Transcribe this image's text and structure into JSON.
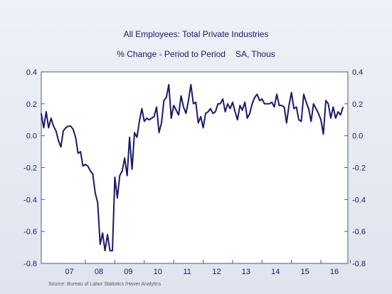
{
  "chart_data": {
    "type": "line",
    "title": "All Employees: Total Private Industries",
    "subtitle_left": "% Change - Period to Period",
    "subtitle_right": "SA, Thous",
    "source": "Source:  Bureau of Labor Statistics /Haver Analytics",
    "ylim": [
      -0.8,
      0.4
    ],
    "yticks": [
      "0.4",
      "0.2",
      "0.0",
      "-0.2",
      "-0.4",
      "-0.6",
      "-0.8"
    ],
    "xticks": [
      "07",
      "08",
      "09",
      "10",
      "11",
      "12",
      "13",
      "14",
      "15",
      "16"
    ],
    "x_start": "2006-07",
    "frequency": "monthly",
    "grid": false,
    "series": [
      {
        "color": "#1a1a66",
        "values": [
          0.14,
          0.05,
          0.15,
          0.05,
          0.11,
          0.06,
          0.03,
          -0.03,
          -0.07,
          0.03,
          0.05,
          0.06,
          0.06,
          0.04,
          -0.01,
          -0.11,
          -0.1,
          -0.19,
          -0.18,
          -0.19,
          -0.22,
          -0.24,
          -0.36,
          -0.42,
          -0.68,
          -0.61,
          -0.72,
          -0.62,
          -0.72,
          -0.72,
          -0.26,
          -0.39,
          -0.25,
          -0.22,
          -0.14,
          -0.25,
          -0.01,
          -0.21,
          0.02,
          -0.01,
          0.09,
          0.17,
          0.09,
          0.11,
          0.1,
          0.11,
          0.12,
          0.18,
          0.02,
          0.08,
          0.22,
          0.24,
          0.32,
          0.11,
          0.19,
          0.16,
          0.13,
          0.25,
          0.18,
          0.14,
          0.22,
          0.32,
          0.2,
          0.21,
          0.08,
          0.12,
          0.05,
          0.14,
          0.15,
          0.17,
          0.14,
          0.15,
          0.2,
          0.2,
          0.23,
          0.15,
          0.2,
          0.17,
          0.21,
          0.15,
          0.1,
          0.19,
          0.16,
          0.21,
          0.11,
          0.14,
          0.2,
          0.24,
          0.26,
          0.22,
          0.23,
          0.2,
          0.2,
          0.2,
          0.21,
          0.18,
          0.26,
          0.19,
          0.19,
          0.18,
          0.08,
          0.19,
          0.27,
          0.17,
          0.18,
          0.1,
          0.09,
          0.26,
          0.21,
          0.17,
          0.09,
          0.2,
          0.17,
          0.14,
          0.1,
          0.01,
          0.22,
          0.2,
          0.11,
          0.18,
          0.11,
          0.15,
          0.13,
          0.18
        ]
      }
    ]
  }
}
